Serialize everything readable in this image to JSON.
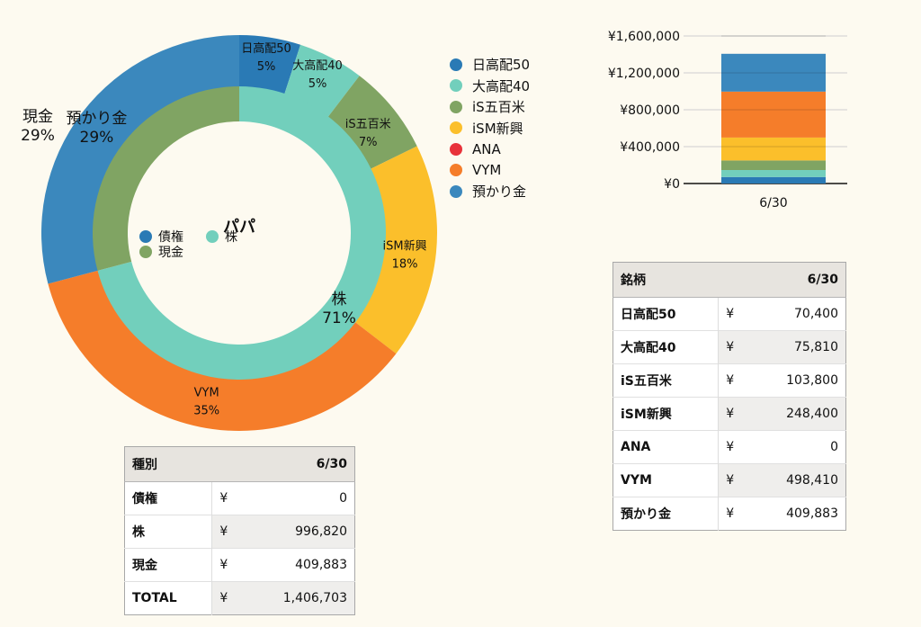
{
  "chart_data": [
    {
      "type": "donut",
      "title": "パパ",
      "inner_ring": {
        "slices": [
          {
            "label": "債権",
            "value": 0,
            "color": "#2a7ab5"
          },
          {
            "label": "株",
            "value": 996820,
            "color": "#72cfbc",
            "text": "株",
            "pct": "71%"
          },
          {
            "label": "現金",
            "value": 409883,
            "color": "#80a463",
            "text": "現金",
            "pct": "29%"
          }
        ]
      },
      "outer_ring": {
        "slices": [
          {
            "label": "日高配50",
            "value": 70400,
            "color": "#2a7ab5",
            "text": "日高配50",
            "pct": "5%"
          },
          {
            "label": "大高配40",
            "value": 75810,
            "color": "#72cfbc",
            "text": "大高配40",
            "pct": "5%"
          },
          {
            "label": "iS五百米",
            "value": 103800,
            "color": "#80a463",
            "text": "iS五百米",
            "pct": "7%"
          },
          {
            "label": "iSM新興",
            "value": 248400,
            "color": "#fbbf2b",
            "text": "iSM新興",
            "pct": "18%"
          },
          {
            "label": "ANA",
            "value": 0,
            "color": "#e8323a"
          },
          {
            "label": "VYM",
            "value": 498410,
            "color": "#f57d2a",
            "text": "VYM",
            "pct": "35%"
          },
          {
            "label": "預かり金",
            "value": 409883,
            "color": "#3b88bd",
            "text": "預かり金",
            "pct": "29%"
          }
        ]
      },
      "inner_legend": [
        {
          "label": "債権",
          "color": "#2a7ab5"
        },
        {
          "label": "株",
          "color": "#72cfbc"
        },
        {
          "label": "現金",
          "color": "#80a463"
        }
      ],
      "legend": [
        {
          "label": "日高配50",
          "color": "#2a7ab5"
        },
        {
          "label": "大高配40",
          "color": "#72cfbc"
        },
        {
          "label": "iS五百米",
          "color": "#80a463"
        },
        {
          "label": "iSM新興",
          "color": "#fbbf2b"
        },
        {
          "label": "ANA",
          "color": "#e8323a"
        },
        {
          "label": "VYM",
          "color": "#f57d2a"
        },
        {
          "label": "預かり金",
          "color": "#3b88bd"
        }
      ]
    },
    {
      "type": "bar",
      "stacked": true,
      "categories": [
        "6/30"
      ],
      "ylim": [
        0,
        1600000
      ],
      "yticks": [
        {
          "value": 0,
          "label": "¥0"
        },
        {
          "value": 400000,
          "label": "¥400,000"
        },
        {
          "value": 800000,
          "label": "¥800,000"
        },
        {
          "value": 1200000,
          "label": "¥1,200,000"
        },
        {
          "value": 1600000,
          "label": "¥1,600,000"
        }
      ],
      "grid": true,
      "series": [
        {
          "name": "日高配50",
          "color": "#2a7ab5",
          "values": [
            70400
          ]
        },
        {
          "name": "大高配40",
          "color": "#72cfbc",
          "values": [
            75810
          ]
        },
        {
          "name": "iS五百米",
          "color": "#80a463",
          "values": [
            103800
          ]
        },
        {
          "name": "iSM新興",
          "color": "#fbbf2b",
          "values": [
            248400
          ]
        },
        {
          "name": "ANA",
          "color": "#e8323a",
          "values": [
            0
          ]
        },
        {
          "name": "VYM",
          "color": "#f57d2a",
          "values": [
            498410
          ]
        },
        {
          "name": "預かり金",
          "color": "#3b88bd",
          "values": [
            409883
          ]
        }
      ]
    },
    {
      "type": "table",
      "headers": [
        "種別",
        "6/30"
      ],
      "rows": [
        {
          "name": "債権",
          "yen": "¥",
          "value": "0"
        },
        {
          "name": "株",
          "yen": "¥",
          "value": "996,820"
        },
        {
          "name": "現金",
          "yen": "¥",
          "value": "409,883"
        },
        {
          "name": "TOTAL",
          "yen": "¥",
          "value": "1,406,703"
        }
      ]
    },
    {
      "type": "table",
      "headers": [
        "銘柄",
        "6/30"
      ],
      "rows": [
        {
          "name": "日高配50",
          "yen": "¥",
          "value": "70,400"
        },
        {
          "name": "大高配40",
          "yen": "¥",
          "value": "75,810"
        },
        {
          "name": "iS五百米",
          "yen": "¥",
          "value": "103,800"
        },
        {
          "name": "iSM新興",
          "yen": "¥",
          "value": "248,400"
        },
        {
          "name": "ANA",
          "yen": "¥",
          "value": "0"
        },
        {
          "name": "VYM",
          "yen": "¥",
          "value": "498,410"
        },
        {
          "name": "預かり金",
          "yen": "¥",
          "value": "409,883"
        }
      ]
    }
  ]
}
